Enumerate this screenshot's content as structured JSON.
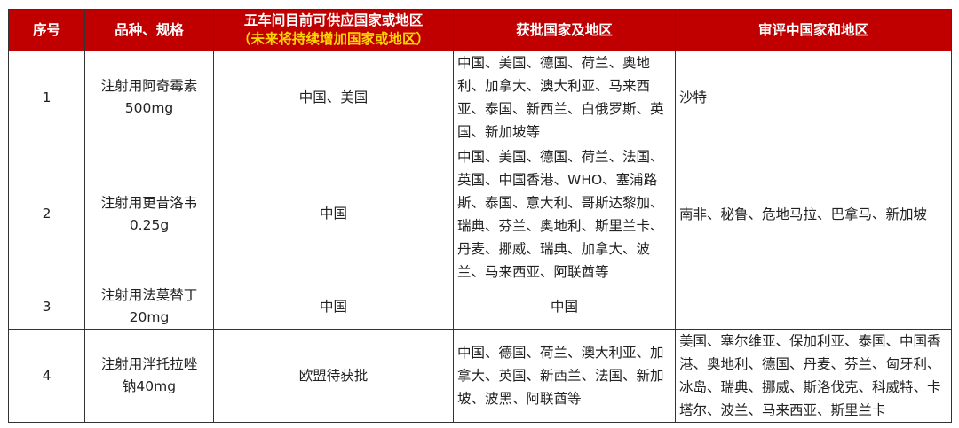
{
  "headers": {
    "no": "序号",
    "product": "品种、规格",
    "supply_line1": "五车间目前可供应国家或地区",
    "supply_line2": "（未来将持续增加国家或地区）",
    "approved": "获批国家及地区",
    "review": "审评中国家和地区"
  },
  "rows": [
    {
      "no": "1",
      "name": "注射用阿奇霉素",
      "spec": "500mg",
      "supply": "中国、美国",
      "approved": "中国、美国、德国、荷兰、奥地利、加拿大、澳大利亚、马来西亚、泰国、新西兰、白俄罗斯、英国、新加坡等",
      "review": "沙特"
    },
    {
      "no": "2",
      "name": "注射用更昔洛韦",
      "spec": "0.25g",
      "supply": "中国",
      "approved": "中国、美国、德国、荷兰、法国、英国、中国香港、WHO、塞浦路斯、泰国、意大利、哥斯达黎加、瑞典、芬兰、奥地利、斯里兰卡、丹麦、挪威、瑞典、加拿大、波兰、马来西亚、阿联酋等",
      "review": "南非、秘鲁、危地马拉、巴拿马、新加坡"
    },
    {
      "no": "3",
      "name": "注射用法莫替丁",
      "spec": "20mg",
      "supply": "中国",
      "approved": "中国",
      "review": ""
    },
    {
      "no": "4",
      "name": "注射用泮托拉唑",
      "spec": "钠40mg",
      "supply": "欧盟待获批",
      "approved": "中国、德国、荷兰、澳大利亚、加拿大、英国、新西兰、法国、新加坡、波黑、阿联酋等",
      "review": "美国、塞尔维亚、保加利亚、泰国、中国香港、奥地利、德国、丹麦、芬兰、匈牙利、冰岛、瑞典、挪威、斯洛伐克、科威特、卡塔尔、波兰、马来西亚、斯里兰卡"
    }
  ],
  "colors": {
    "header_bg": "#c00000",
    "header_text": "#ffffff",
    "header_sub": "#ffd700"
  }
}
